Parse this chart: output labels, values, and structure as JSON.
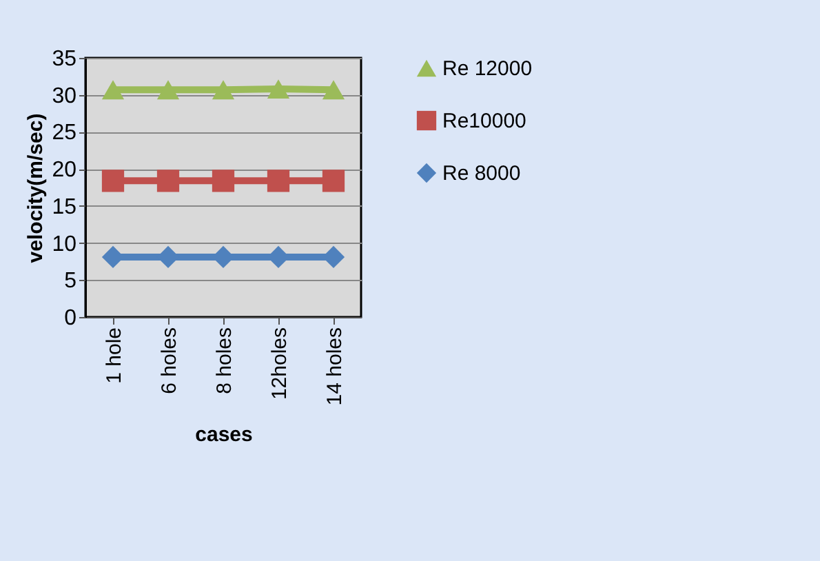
{
  "chart_data": {
    "type": "line",
    "xlabel": "cases",
    "ylabel": "velocity(m/sec)",
    "categories": [
      "1 hole",
      "6 holes",
      "8 holes",
      "12holes",
      "14 holes"
    ],
    "series": [
      {
        "name": "Re 12000",
        "color": "#9bbb59",
        "marker": "triangle",
        "values": [
          30.7,
          30.7,
          30.7,
          30.8,
          30.7
        ]
      },
      {
        "name": "Re10000",
        "color": "#c0504d",
        "marker": "square",
        "values": [
          18.4,
          18.4,
          18.4,
          18.4,
          18.4
        ]
      },
      {
        "name": "Re 8000",
        "color": "#4f81bd",
        "marker": "diamond",
        "values": [
          8.1,
          8.1,
          8.1,
          8.1,
          8.1
        ]
      }
    ],
    "ylim": [
      0,
      35
    ],
    "yticks": [
      0,
      5,
      10,
      15,
      20,
      25,
      30,
      35
    ],
    "grid": "y",
    "legend": "right",
    "line_style": "solid"
  }
}
